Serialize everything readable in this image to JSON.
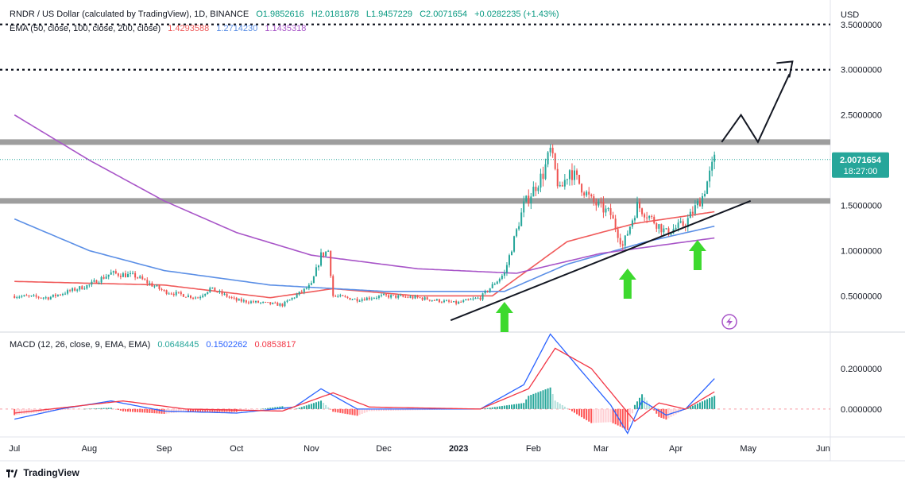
{
  "header": {
    "symbol_line": "RNDR / US Dollar (calculated by TradingView), 1D, BINANCE",
    "open": "O1.9852616",
    "high": "H2.0181878",
    "low": "L1.9457229",
    "close": "C2.0071654",
    "change": "+0.0282235 (+1.43%)",
    "ema_label": "EMA (50, close, 100, close, 200, close)",
    "ema50": "1.4293588",
    "ema100": "1.2714230",
    "ema200": "1.1435318",
    "macd_label": "MACD (12, 26, close, 9, EMA, EMA)",
    "macd_hist": "0.0648445",
    "macd_line": "0.1502262",
    "macd_signal": "0.0853817"
  },
  "price_axis": {
    "currency": "USD",
    "last_price": "2.0071654",
    "countdown": "18:27:00"
  },
  "brand": "TradingView",
  "colors": {
    "up": "#26a69a",
    "down": "#ef5350",
    "ema50": "#f05a5a",
    "ema100": "#5b8fe6",
    "ema200": "#a855c8",
    "macd": "#2962ff",
    "signal": "#f23645",
    "arrow": "#3dd92e",
    "level": "#9e9e9e"
  },
  "chart_data": {
    "type": "candlestick",
    "y_unit": "USD",
    "y_range": [
      0.1,
      3.7
    ],
    "y_ticks": [
      "3.5000000",
      "3.0000000",
      "2.5000000",
      "2.0000000",
      "1.5000000",
      "1.0000000",
      "0.5000000"
    ],
    "x_ticks": [
      "Jul",
      "Aug",
      "Sep",
      "Oct",
      "Nov",
      "Dec",
      "2023",
      "Feb",
      "Mar",
      "Apr",
      "May",
      "Jun"
    ],
    "price_path": [
      [
        "2022-07-01",
        0.5
      ],
      [
        "2022-07-15",
        0.48
      ],
      [
        "2022-08-01",
        0.62
      ],
      [
        "2022-08-10",
        0.75
      ],
      [
        "2022-08-20",
        0.72
      ],
      [
        "2022-09-01",
        0.55
      ],
      [
        "2022-09-15",
        0.48
      ],
      [
        "2022-09-20",
        0.58
      ],
      [
        "2022-10-01",
        0.45
      ],
      [
        "2022-10-20",
        0.4
      ],
      [
        "2022-11-01",
        0.62
      ],
      [
        "2022-11-05",
        0.95
      ],
      [
        "2022-11-08",
        1.0
      ],
      [
        "2022-11-10",
        0.5
      ],
      [
        "2022-11-20",
        0.46
      ],
      [
        "2022-12-01",
        0.5
      ],
      [
        "2022-12-15",
        0.48
      ],
      [
        "2022-12-31",
        0.42
      ],
      [
        "2023-01-10",
        0.48
      ],
      [
        "2023-01-20",
        0.75
      ],
      [
        "2023-01-28",
        1.5
      ],
      [
        "2023-02-05",
        1.85
      ],
      [
        "2023-02-08",
        2.1
      ],
      [
        "2023-02-12",
        1.65
      ],
      [
        "2023-02-16",
        1.9
      ],
      [
        "2023-02-25",
        1.55
      ],
      [
        "2023-03-05",
        1.4
      ],
      [
        "2023-03-10",
        1.05
      ],
      [
        "2023-03-16",
        1.5
      ],
      [
        "2023-03-22",
        1.35
      ],
      [
        "2023-03-28",
        1.2
      ],
      [
        "2023-04-05",
        1.3
      ],
      [
        "2023-04-12",
        1.6
      ],
      [
        "2023-04-17",
        2.0
      ]
    ],
    "ema_series": [
      {
        "name": "EMA 50",
        "color": "#f05a5a",
        "points": [
          [
            "2022-07-01",
            0.66
          ],
          [
            "2022-09-01",
            0.62
          ],
          [
            "2022-10-15",
            0.48
          ],
          [
            "2022-11-10",
            0.58
          ],
          [
            "2022-12-15",
            0.5
          ],
          [
            "2023-01-15",
            0.5
          ],
          [
            "2023-02-15",
            1.1
          ],
          [
            "2023-03-15",
            1.3
          ],
          [
            "2023-04-17",
            1.43
          ]
        ]
      },
      {
        "name": "EMA 100",
        "color": "#5b8fe6",
        "points": [
          [
            "2022-07-01",
            1.35
          ],
          [
            "2022-08-01",
            1.0
          ],
          [
            "2022-09-01",
            0.78
          ],
          [
            "2022-10-15",
            0.62
          ],
          [
            "2022-12-01",
            0.55
          ],
          [
            "2023-01-20",
            0.55
          ],
          [
            "2023-02-15",
            0.85
          ],
          [
            "2023-03-20",
            1.1
          ],
          [
            "2023-04-17",
            1.27
          ]
        ]
      },
      {
        "name": "EMA 200",
        "color": "#a855c8",
        "points": [
          [
            "2022-07-01",
            2.5
          ],
          [
            "2022-08-01",
            2.0
          ],
          [
            "2022-09-01",
            1.55
          ],
          [
            "2022-10-01",
            1.2
          ],
          [
            "2022-11-01",
            0.95
          ],
          [
            "2022-12-15",
            0.8
          ],
          [
            "2023-01-25",
            0.75
          ],
          [
            "2023-03-01",
            0.97
          ],
          [
            "2023-04-17",
            1.14
          ]
        ]
      }
    ],
    "horizontal_levels": [
      {
        "value": 3.5,
        "style": "dotted"
      },
      {
        "value": 3.0,
        "style": "dotted"
      },
      {
        "value": 2.2,
        "style": "band"
      },
      {
        "value": 1.55,
        "style": "band"
      }
    ],
    "trendline": [
      [
        "2023-01-01",
        0.3
      ],
      [
        "2023-05-01",
        1.55
      ]
    ],
    "projection": [
      [
        "2023-04-20",
        2.2
      ],
      [
        "2023-04-28",
        2.5
      ],
      [
        "2023-05-05",
        2.2
      ],
      [
        "2023-05-18",
        2.95
      ]
    ],
    "arrows": [
      "2023-01-20",
      "2023-03-12",
      "2023-04-10"
    ],
    "macd": {
      "y_ticks": [
        "0.2000000",
        "0.0000000"
      ],
      "y_range": [
        -0.13,
        0.38
      ],
      "macd_path": [
        [
          "2022-07-01",
          -0.05
        ],
        [
          "2022-07-20",
          0.0
        ],
        [
          "2022-08-10",
          0.04
        ],
        [
          "2022-09-01",
          -0.01
        ],
        [
          "2022-10-01",
          -0.02
        ],
        [
          "2022-10-25",
          0.01
        ],
        [
          "2022-11-05",
          0.1
        ],
        [
          "2022-11-20",
          0.0
        ],
        [
          "2022-12-15",
          0.0
        ],
        [
          "2023-01-10",
          0.0
        ],
        [
          "2023-01-28",
          0.12
        ],
        [
          "2023-02-08",
          0.37
        ],
        [
          "2023-02-20",
          0.2
        ],
        [
          "2023-03-05",
          0.02
        ],
        [
          "2023-03-12",
          -0.12
        ],
        [
          "2023-03-18",
          0.04
        ],
        [
          "2023-03-28",
          -0.03
        ],
        [
          "2023-04-05",
          0.0
        ],
        [
          "2023-04-17",
          0.15
        ]
      ],
      "signal_path": [
        [
          "2022-07-01",
          -0.02
        ],
        [
          "2022-08-15",
          0.04
        ],
        [
          "2022-09-10",
          0.0
        ],
        [
          "2022-10-20",
          -0.01
        ],
        [
          "2022-11-10",
          0.08
        ],
        [
          "2022-11-25",
          0.01
        ],
        [
          "2023-01-10",
          0.0
        ],
        [
          "2023-01-30",
          0.1
        ],
        [
          "2023-02-10",
          0.3
        ],
        [
          "2023-02-25",
          0.2
        ],
        [
          "2023-03-15",
          -0.06
        ],
        [
          "2023-03-25",
          0.03
        ],
        [
          "2023-04-05",
          0.0
        ],
        [
          "2023-04-17",
          0.085
        ]
      ]
    }
  }
}
